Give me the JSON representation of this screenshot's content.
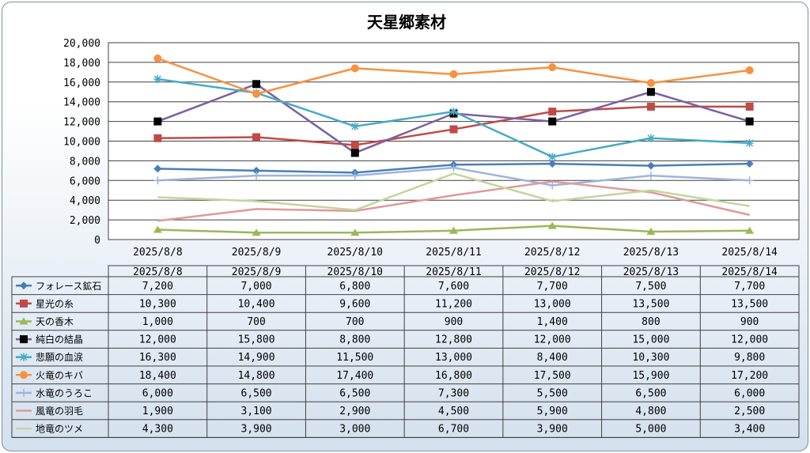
{
  "chart_data": {
    "type": "line",
    "title": "天星郷素材",
    "xlabel": "",
    "ylabel": "",
    "ylim": [
      0,
      20000
    ],
    "yticks": [
      0,
      2000,
      4000,
      6000,
      8000,
      10000,
      12000,
      14000,
      16000,
      18000,
      20000
    ],
    "ytick_labels": [
      "0",
      "2,000",
      "4,000",
      "6,000",
      "8,000",
      "10,000",
      "12,000",
      "14,000",
      "16,000",
      "18,000",
      "20,000"
    ],
    "grid": true,
    "legend": "data-table",
    "categories": [
      "2025/8/8",
      "2025/8/9",
      "2025/8/10",
      "2025/8/11",
      "2025/8/12",
      "2025/8/13",
      "2025/8/14"
    ],
    "series": [
      {
        "name": "フォレース鉱石",
        "color": "#4a7ebb",
        "marker": "diamond",
        "values": [
          7200,
          7000,
          6800,
          7600,
          7700,
          7500,
          7700
        ],
        "labels": [
          "7,200",
          "7,000",
          "6,800",
          "7,600",
          "7,700",
          "7,500",
          "7,700"
        ]
      },
      {
        "name": "星光の糸",
        "color": "#be4b48",
        "marker": "square",
        "values": [
          10300,
          10400,
          9600,
          11200,
          13000,
          13500,
          13500
        ],
        "labels": [
          "10,300",
          "10,400",
          "9,600",
          "11,200",
          "13,000",
          "13,500",
          "13,500"
        ]
      },
      {
        "name": "天の香木",
        "color": "#98b954",
        "marker": "triangle",
        "values": [
          1000,
          700,
          700,
          900,
          1400,
          800,
          900
        ],
        "labels": [
          "1,000",
          "700",
          "700",
          "900",
          "1,400",
          "800",
          "900"
        ]
      },
      {
        "name": "純白の結晶",
        "color": "#7d60a0",
        "marker": "blacksquare",
        "values": [
          12000,
          15800,
          8800,
          12800,
          12000,
          15000,
          12000
        ],
        "labels": [
          "12,000",
          "15,800",
          "8,800",
          "12,800",
          "12,000",
          "15,000",
          "12,000"
        ]
      },
      {
        "name": "悲願の血涙",
        "color": "#46aac5",
        "marker": "star",
        "values": [
          16300,
          14900,
          11500,
          13000,
          8400,
          10300,
          9800
        ],
        "labels": [
          "16,300",
          "14,900",
          "11,500",
          "13,000",
          "8,400",
          "10,300",
          "9,800"
        ]
      },
      {
        "name": "火竜のキバ",
        "color": "#f69240",
        "marker": "circle",
        "values": [
          18400,
          14800,
          17400,
          16800,
          17500,
          15900,
          17200
        ],
        "labels": [
          "18,400",
          "14,800",
          "17,400",
          "16,800",
          "17,500",
          "15,900",
          "17,200"
        ]
      },
      {
        "name": "水竜のうろこ",
        "color": "#9db4dc",
        "marker": "plus",
        "values": [
          6000,
          6500,
          6500,
          7300,
          5500,
          6500,
          6000
        ],
        "labels": [
          "6,000",
          "6,500",
          "6,500",
          "7,300",
          "5,500",
          "6,500",
          "6,000"
        ]
      },
      {
        "name": "風竜の羽毛",
        "color": "#de9a9a",
        "marker": "none",
        "values": [
          1900,
          3100,
          2900,
          4500,
          5900,
          4800,
          2500
        ],
        "labels": [
          "1,900",
          "3,100",
          "2,900",
          "4,500",
          "5,900",
          "4,800",
          "2,500"
        ]
      },
      {
        "name": "地竜のツメ",
        "color": "#c3d69b",
        "marker": "none",
        "values": [
          4300,
          3900,
          3000,
          6700,
          3900,
          5000,
          3400
        ],
        "labels": [
          "4,300",
          "3,900",
          "3,000",
          "6,700",
          "3,900",
          "5,000",
          "3,400"
        ]
      }
    ]
  }
}
